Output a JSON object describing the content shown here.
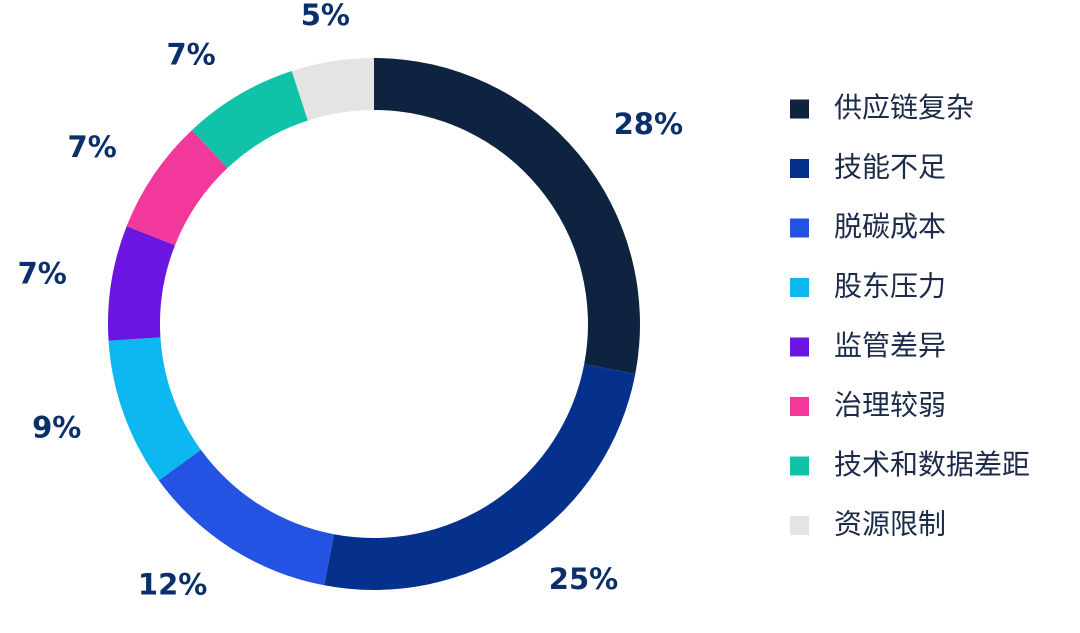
{
  "chart_data": {
    "type": "pie",
    "style": "donut",
    "categories": [
      "供应链复杂",
      "技能不足",
      "脱碳成本",
      "股东压力",
      "监管差异",
      "治理较弱",
      "技术和数据差距",
      "资源限制"
    ],
    "values": [
      28,
      25,
      12,
      9,
      7,
      7,
      7,
      5
    ],
    "value_labels": [
      "28%",
      "25%",
      "12%",
      "9%",
      "7%",
      "7%",
      "7%",
      "5%"
    ],
    "colors": [
      "#0d2340",
      "#05318c",
      "#2453e3",
      "#0db8f0",
      "#6a16e0",
      "#f2389a",
      "#10c2a8",
      "#e4e4e4"
    ],
    "legend_position": "right",
    "start_angle": "top",
    "direction": "clockwise",
    "label_color": "#0b2f6b"
  }
}
